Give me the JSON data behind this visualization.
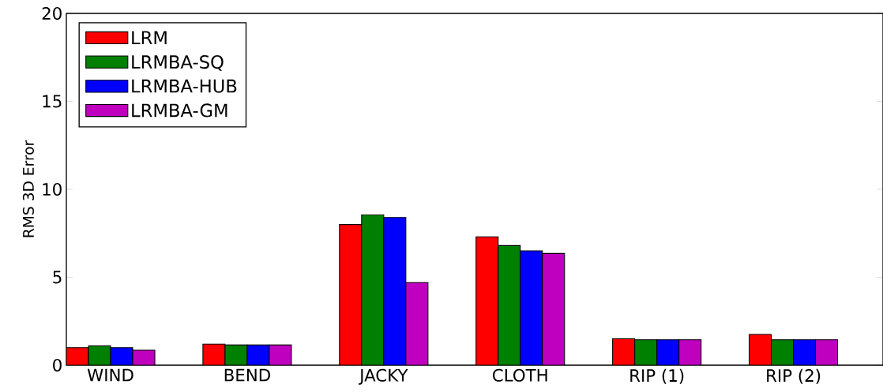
{
  "chart_data": {
    "type": "bar",
    "ylabel": "RMS 3D Error",
    "categories": [
      "WIND",
      "BEND",
      "JACKY",
      "CLOTH",
      "RIP (1)",
      "RIP (2)"
    ],
    "series": [
      {
        "name": "LRM",
        "color": "#ff0000",
        "values": [
          1.0,
          1.2,
          8.0,
          7.3,
          1.5,
          1.75
        ]
      },
      {
        "name": "LRMBA-SQ",
        "color": "#008000",
        "values": [
          1.1,
          1.15,
          8.55,
          6.8,
          1.45,
          1.45
        ]
      },
      {
        "name": "LRMBA-HUB",
        "color": "#0000ff",
        "values": [
          1.0,
          1.15,
          8.4,
          6.5,
          1.45,
          1.45
        ]
      },
      {
        "name": "LRMBA-GM",
        "color": "#bf00bf",
        "values": [
          0.85,
          1.15,
          4.7,
          6.35,
          1.45,
          1.45
        ]
      }
    ],
    "ylim": [
      0,
      20
    ],
    "yticks": [
      0,
      5,
      10,
      15,
      20
    ],
    "legend": "top left"
  }
}
